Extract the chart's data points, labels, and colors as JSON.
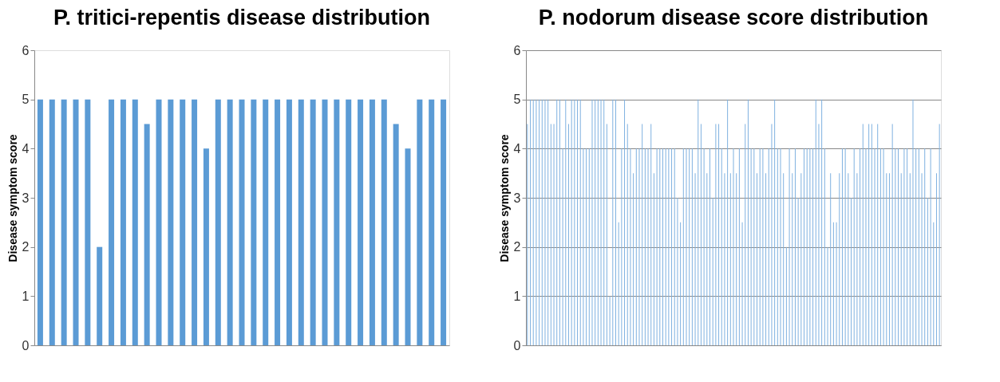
{
  "chart_data": [
    {
      "type": "bar",
      "title": "P. tritici-repentis disease distribution",
      "ylabel": "Disease symptom score",
      "categories": [
        null,
        null,
        null,
        null,
        null,
        null,
        null,
        null,
        null,
        null,
        null,
        null,
        null,
        null,
        null,
        null,
        null,
        null,
        null,
        null,
        null,
        null,
        null,
        null,
        null,
        null,
        null,
        null,
        null,
        null,
        null,
        null,
        null,
        null,
        null
      ],
      "values": [
        5,
        5,
        5,
        5,
        5,
        2,
        5,
        5,
        5,
        4.5,
        5,
        5,
        5,
        5,
        4,
        5,
        5,
        5,
        5,
        5,
        5,
        5,
        5,
        5,
        5,
        5,
        5,
        5,
        5,
        5,
        4.5,
        4,
        5,
        5,
        5
      ],
      "color": "#5b9bd5",
      "ylim": [
        0,
        6
      ],
      "yticks": [
        0,
        1,
        2,
        3,
        4,
        5,
        6
      ],
      "grid": false
    },
    {
      "type": "bar",
      "title": "P. nodorum disease score distribution",
      "ylabel": "Disease symptom score",
      "categories": [
        null,
        null,
        null,
        null,
        null,
        null,
        null,
        null,
        null,
        null,
        null,
        null,
        null,
        null,
        null,
        null,
        null,
        null,
        null,
        null,
        null,
        null,
        null,
        null,
        null,
        null,
        null,
        null,
        null,
        null,
        null,
        null,
        null,
        null,
        null,
        null,
        null,
        null,
        null,
        null,
        null,
        null,
        null,
        null,
        null,
        null,
        null,
        null,
        null,
        null,
        null,
        null,
        null,
        null,
        null,
        null,
        null,
        null,
        null,
        null,
        null,
        null,
        null,
        null,
        null,
        null,
        null,
        null,
        null,
        null,
        null,
        null,
        null,
        null,
        null,
        null,
        null,
        null,
        null,
        null,
        null,
        null,
        null,
        null,
        null,
        null,
        null,
        null,
        null,
        null,
        null,
        null,
        null,
        null,
        null,
        null,
        null,
        null,
        null,
        null,
        null,
        null,
        null,
        null,
        null,
        null,
        null,
        null,
        null,
        null,
        null,
        null,
        null,
        null,
        null,
        null,
        null,
        null,
        null,
        null,
        null,
        null,
        null,
        null,
        null,
        null,
        null,
        null,
        null,
        null,
        null,
        null,
        null,
        null,
        null,
        null,
        null,
        null,
        null,
        null,
        null
      ],
      "values": [
        4.5,
        5,
        5,
        5,
        5,
        5,
        5,
        5,
        4.5,
        4.5,
        5,
        5,
        4,
        5,
        4.5,
        5,
        5,
        5,
        5,
        4,
        4,
        4,
        5,
        5,
        5,
        5,
        5,
        4.5,
        1,
        5,
        5,
        2.5,
        4,
        5,
        4.5,
        4,
        3.5,
        4,
        4,
        4.5,
        4,
        4,
        4.5,
        3.5,
        4,
        4,
        4,
        4,
        4,
        4,
        4,
        3,
        2.5,
        4,
        4,
        4,
        4,
        3.5,
        5,
        4.5,
        4,
        3.5,
        4,
        3,
        4.5,
        4.5,
        4,
        3.5,
        5,
        3.5,
        4,
        3.5,
        4,
        2.5,
        4.5,
        5,
        4,
        4,
        3.5,
        4,
        4,
        3.5,
        4,
        4.5,
        5,
        4,
        4,
        3.5,
        2,
        4,
        3.5,
        4,
        3,
        3.5,
        4,
        4,
        4,
        4,
        5,
        4.5,
        5,
        4,
        2,
        3.5,
        2.5,
        2.5,
        3.5,
        4,
        4,
        3.5,
        3,
        4,
        3.5,
        4,
        4.5,
        4,
        4.5,
        4.5,
        4,
        4.5,
        4,
        4,
        3.5,
        3.5,
        4.5,
        4,
        4,
        3.5,
        4,
        4,
        3.5,
        5,
        4,
        4,
        3.5,
        4,
        3,
        4,
        2.5,
        3.5,
        4.5
      ],
      "color": "#7fb1e0",
      "ylim": [
        0,
        6
      ],
      "yticks": [
        0,
        1,
        2,
        3,
        4,
        5,
        6
      ],
      "grid": "y"
    }
  ]
}
